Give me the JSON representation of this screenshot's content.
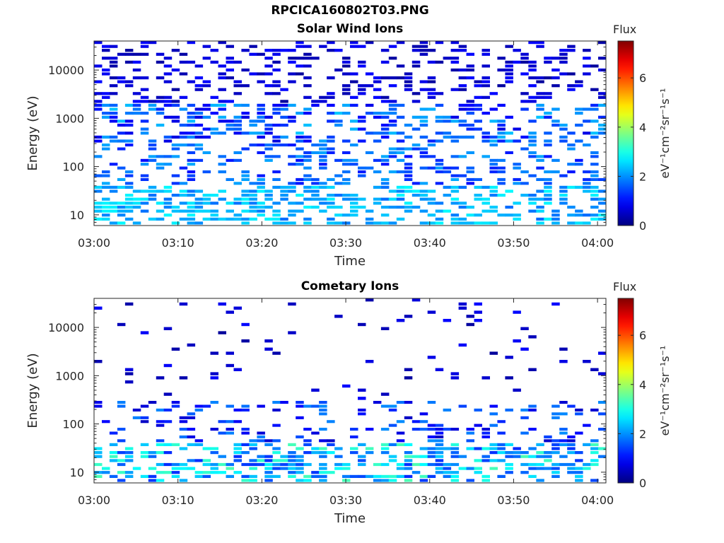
{
  "figure": {
    "title": "RPCICA160802T03.PNG"
  },
  "chart_data": [
    {
      "type": "heatmap",
      "title": "Solar Wind Ions",
      "xlabel": "Time",
      "ylabel": "Energy (eV)",
      "x_ticks": [
        "03:00",
        "03:10",
        "03:20",
        "03:30",
        "03:40",
        "03:50",
        "04:00"
      ],
      "xlim_minutes": [
        0,
        61
      ],
      "y_scale": "log",
      "y_ticks": [
        "10",
        "100",
        "1000",
        "10000"
      ],
      "ylim": [
        6,
        40000
      ],
      "colorbar": {
        "label": "Flux",
        "unit": "eV⁻¹cm⁻²sr⁻¹s⁻¹",
        "ticks": [
          "0",
          "2",
          "4",
          "6"
        ],
        "range": [
          0,
          7.5
        ],
        "colormap": "jet"
      },
      "bands": [
        {
          "energy_range": [
            2000,
            40000
          ],
          "density": 0.3,
          "flux_range": [
            0.2,
            1.0
          ]
        },
        {
          "energy_range": [
            300,
            2000
          ],
          "density": 0.38,
          "flux_range": [
            0.7,
            2.4
          ]
        },
        {
          "energy_range": [
            40,
            300
          ],
          "density": 0.32,
          "flux_range": [
            1.0,
            2.2
          ]
        },
        {
          "energy_range": [
            6,
            40
          ],
          "density": 0.5,
          "flux_range": [
            1.7,
            2.8
          ]
        }
      ]
    },
    {
      "type": "heatmap",
      "title": "Cometary Ions",
      "xlabel": "Time",
      "ylabel": "Energy (eV)",
      "x_ticks": [
        "03:00",
        "03:10",
        "03:20",
        "03:30",
        "03:40",
        "03:50",
        "04:00"
      ],
      "xlim_minutes": [
        0,
        61
      ],
      "y_scale": "log",
      "y_ticks": [
        "10",
        "100",
        "1000",
        "10000"
      ],
      "ylim": [
        6,
        40000
      ],
      "colorbar": {
        "label": "Flux",
        "unit": "eV⁻¹cm⁻²sr⁻¹s⁻¹",
        "ticks": [
          "0",
          "2",
          "4",
          "6"
        ],
        "range": [
          0,
          7.5
        ],
        "colormap": "jet"
      },
      "bands": [
        {
          "energy_range": [
            300,
            40000
          ],
          "density": 0.04,
          "flux_range": [
            0.2,
            1.0
          ]
        },
        {
          "energy_range": [
            40,
            300
          ],
          "density": 0.2,
          "flux_range": [
            0.5,
            2.0
          ]
        },
        {
          "energy_range": [
            6,
            40
          ],
          "density": 0.45,
          "flux_range": [
            1.2,
            3.4
          ]
        }
      ]
    }
  ]
}
